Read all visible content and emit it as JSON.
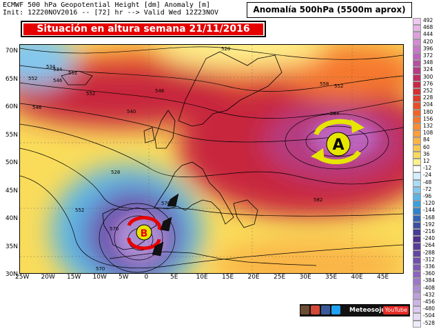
{
  "header": {
    "line1": "ECMWF 500 hPa Geopotential Height [dm] Anomaly [m]",
    "line2": "Init: 12Z20NOV2016 -- [72] hr --> Valid Wed 12Z23NOV"
  },
  "anomaly_box": "Anomalía 500hPa (5500m aprox)",
  "banner": "Situación en altura semana 21/11/2016",
  "lat_labels": [
    "70N",
    "65N",
    "60N",
    "55N",
    "50N",
    "45N",
    "40N",
    "35N",
    "30N"
  ],
  "lon_labels": [
    "25W",
    "20W",
    "15W",
    "10W",
    "5W",
    "0",
    "5E",
    "10E",
    "15E",
    "20E",
    "25E",
    "30E",
    "35E",
    "40E",
    "45E"
  ],
  "contour_labels": [
    "528",
    "534",
    "546",
    "552",
    "552",
    "558",
    "540",
    "534",
    "546",
    "552",
    "546",
    "564",
    "528",
    "552",
    "570",
    "576",
    "582",
    "570",
    "552"
  ],
  "highs_lows": {
    "high": "A",
    "low": "B"
  },
  "colorbar": {
    "labels": [
      "492",
      "468",
      "444",
      "420",
      "396",
      "372",
      "348",
      "324",
      "300",
      "276",
      "252",
      "228",
      "204",
      "180",
      "156",
      "132",
      "108",
      "84",
      "60",
      "36",
      "12",
      "-12",
      "-24",
      "-48",
      "-72",
      "-96",
      "-120",
      "-144",
      "-168",
      "-192",
      "-216",
      "-240",
      "-264",
      "-288",
      "-312",
      "-336",
      "-360",
      "-384",
      "-408",
      "-432",
      "-456",
      "-480",
      "-504",
      "-528"
    ],
    "colors": [
      "#f0c8f0",
      "#e6b4e6",
      "#dca0dc",
      "#d28cd2",
      "#c878c8",
      "#be64be",
      "#b450a0",
      "#b43c82",
      "#be2d64",
      "#c82846",
      "#d23232",
      "#dc3c28",
      "#e65028",
      "#f06428",
      "#f5782d",
      "#fa8c32",
      "#faa03c",
      "#fab446",
      "#fac850",
      "#fadc5a",
      "#fff08c",
      "#ffffff",
      "#d2f0ff",
      "#aadcf5",
      "#82c8f0",
      "#5ab4e6",
      "#3ca0dc",
      "#3282c8",
      "#3264b4",
      "#3c50a0",
      "#463c96",
      "#50328c",
      "#5a3c96",
      "#6446a0",
      "#7050aa",
      "#7c5ab4",
      "#8c64be",
      "#9c78c8",
      "#ac8cd2",
      "#bca0dc",
      "#ccb4e6",
      "#dcc8f0",
      "#e6dcf5",
      "#f0ebfa"
    ]
  },
  "social": {
    "text": "Meteosojuela",
    "yt": "YouTube"
  },
  "map_colors": {
    "deep_red": "#c8283c",
    "magenta": "#b43c82",
    "orange": "#f5782d",
    "yellow": "#fadc5a",
    "blue": "#3ca0dc",
    "purple": "#7050aa",
    "arrow_yellow": "#e6e600",
    "arrow_red": "#e60000"
  }
}
